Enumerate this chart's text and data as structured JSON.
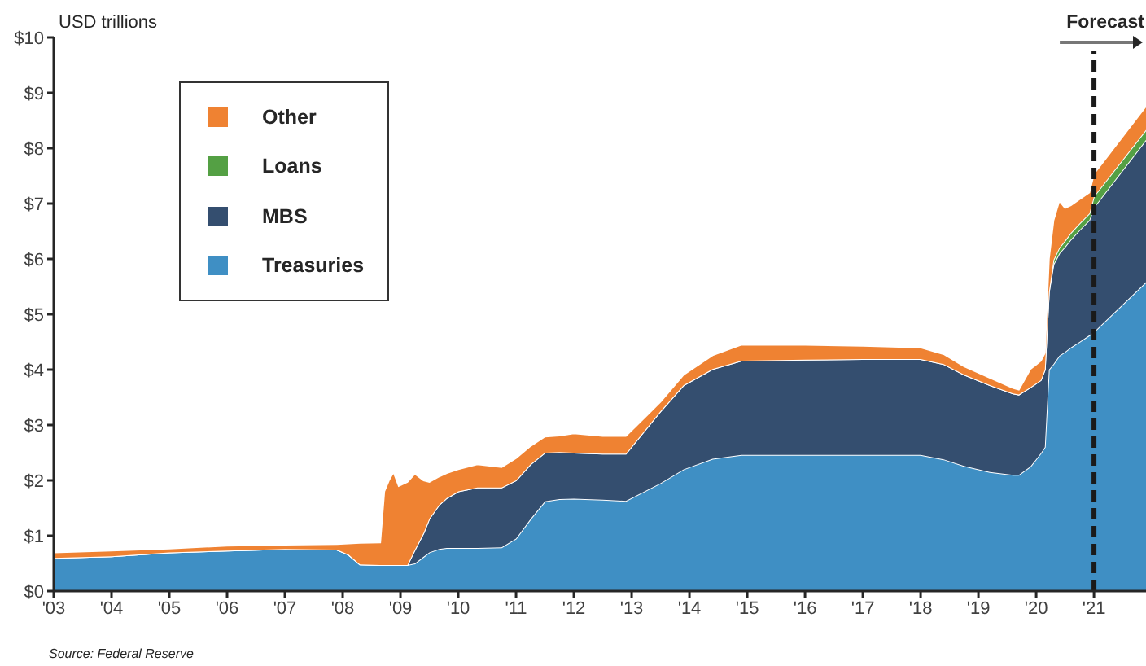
{
  "chart_data": {
    "type": "area",
    "stacked": true,
    "ylabel": "USD trillions",
    "annotations": [
      "Source: Federal Reserve"
    ],
    "x": [
      2003,
      2004,
      2005,
      2006,
      2007,
      2007.9,
      2008.1,
      2008.3,
      2008.65,
      2008.72,
      2008.8,
      2008.88,
      2008.97,
      2009.12,
      2009.25,
      2009.4,
      2009.5,
      2009.67,
      2009.8,
      2010,
      2010.33,
      2010.75,
      2011,
      2011.25,
      2011.5,
      2011.75,
      2012,
      2012.5,
      2012.9,
      2013.5,
      2013.9,
      2014.4,
      2014.9,
      2016,
      2017,
      2018,
      2018.4,
      2018.75,
      2019.2,
      2019.6,
      2019.7,
      2019.9,
      2020.08,
      2020.15,
      2020.22,
      2020.3,
      2020.4,
      2020.5,
      2020.6,
      2020.75,
      2020.92,
      2021,
      2021.9
    ],
    "series": [
      {
        "name": "Treasuries",
        "color": "#3f8fc4",
        "values": [
          0.6,
          0.63,
          0.7,
          0.73,
          0.76,
          0.75,
          0.66,
          0.48,
          0.47,
          0.47,
          0.47,
          0.47,
          0.47,
          0.47,
          0.5,
          0.62,
          0.7,
          0.76,
          0.78,
          0.78,
          0.78,
          0.79,
          0.95,
          1.3,
          1.62,
          1.66,
          1.67,
          1.65,
          1.63,
          1.95,
          2.2,
          2.39,
          2.46,
          2.46,
          2.46,
          2.46,
          2.38,
          2.26,
          2.15,
          2.1,
          2.1,
          2.25,
          2.49,
          2.6,
          4.0,
          4.1,
          4.25,
          4.32,
          4.4,
          4.5,
          4.62,
          4.68,
          5.58
        ]
      },
      {
        "name": "MBS",
        "color": "#344e6f",
        "values": [
          0,
          0,
          0,
          0,
          0,
          0,
          0,
          0,
          0,
          0,
          0,
          0,
          0,
          0,
          0.25,
          0.43,
          0.61,
          0.8,
          0.9,
          1.02,
          1.09,
          1.08,
          1.05,
          0.99,
          0.88,
          0.85,
          0.83,
          0.83,
          0.85,
          1.3,
          1.52,
          1.62,
          1.7,
          1.72,
          1.73,
          1.73,
          1.72,
          1.65,
          1.57,
          1.47,
          1.45,
          1.43,
          1.32,
          1.4,
          1.4,
          1.8,
          1.85,
          1.9,
          1.95,
          2.02,
          2.08,
          2.25,
          2.57
        ]
      },
      {
        "name": "Loans",
        "color": "#54a044",
        "values": [
          0,
          0,
          0,
          0,
          0,
          0,
          0,
          0,
          0,
          0,
          0,
          0,
          0,
          0,
          0,
          0,
          0,
          0,
          0,
          0,
          0,
          0,
          0,
          0,
          0,
          0,
          0,
          0,
          0,
          0,
          0,
          0,
          0,
          0,
          0,
          0,
          0,
          0,
          0,
          0,
          0,
          0,
          0,
          0,
          0,
          0.08,
          0.1,
          0.11,
          0.12,
          0.12,
          0.12,
          0.2,
          0.18
        ]
      },
      {
        "name": "Other",
        "color": "#ef8232",
        "values": [
          0.1,
          0.1,
          0.07,
          0.09,
          0.08,
          0.1,
          0.2,
          0.39,
          0.41,
          1.33,
          1.53,
          1.68,
          1.43,
          1.5,
          1.37,
          0.95,
          0.66,
          0.51,
          0.45,
          0.4,
          0.42,
          0.37,
          0.4,
          0.33,
          0.29,
          0.3,
          0.35,
          0.32,
          0.32,
          0.17,
          0.19,
          0.25,
          0.29,
          0.27,
          0.24,
          0.21,
          0.18,
          0.15,
          0.13,
          0.1,
          0.09,
          0.33,
          0.35,
          0.3,
          0.6,
          0.72,
          0.85,
          0.59,
          0.5,
          0.44,
          0.38,
          0.41,
          0.43
        ]
      }
    ],
    "xlim": [
      2003,
      2021.9
    ],
    "xticks": [
      {
        "value": 2003,
        "label": "'03"
      },
      {
        "value": 2004,
        "label": "'04"
      },
      {
        "value": 2005,
        "label": "'05"
      },
      {
        "value": 2006,
        "label": "'06"
      },
      {
        "value": 2007,
        "label": "'07"
      },
      {
        "value": 2008,
        "label": "'08"
      },
      {
        "value": 2009,
        "label": "'09"
      },
      {
        "value": 2010,
        "label": "'10"
      },
      {
        "value": 2011,
        "label": "'11"
      },
      {
        "value": 2012,
        "label": "'12"
      },
      {
        "value": 2013,
        "label": "'13"
      },
      {
        "value": 2014,
        "label": "'14"
      },
      {
        "value": 2015,
        "label": "'15"
      },
      {
        "value": 2016,
        "label": "'16"
      },
      {
        "value": 2017,
        "label": "'17"
      },
      {
        "value": 2018,
        "label": "'18"
      },
      {
        "value": 2019,
        "label": "'19"
      },
      {
        "value": 2020,
        "label": "'20"
      },
      {
        "value": 2021,
        "label": "'21"
      }
    ],
    "ylim": [
      0,
      10
    ],
    "yticks": [
      {
        "value": 0,
        "label": "$0"
      },
      {
        "value": 1,
        "label": "$1"
      },
      {
        "value": 2,
        "label": "$2"
      },
      {
        "value": 3,
        "label": "$3"
      },
      {
        "value": 4,
        "label": "$4"
      },
      {
        "value": 5,
        "label": "$5"
      },
      {
        "value": 6,
        "label": "$6"
      },
      {
        "value": 7,
        "label": "$7"
      },
      {
        "value": 8,
        "label": "$8"
      },
      {
        "value": 9,
        "label": "$9"
      },
      {
        "value": 10,
        "label": "$10"
      }
    ],
    "ref_lines": [
      {
        "axis": "x",
        "value": 2021,
        "label": "Forecast",
        "color": "#1a1a1a",
        "line_style": "dashed"
      }
    ],
    "legend": "top left"
  }
}
